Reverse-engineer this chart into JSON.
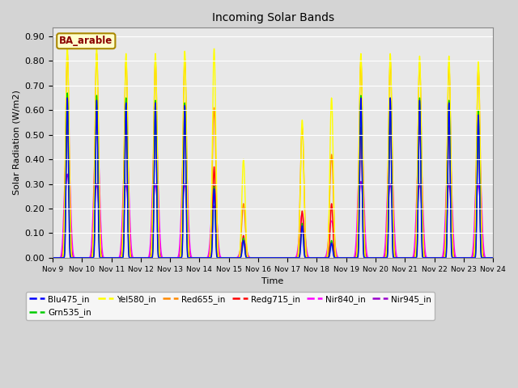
{
  "title": "Incoming Solar Bands",
  "xlabel": "Time",
  "ylabel": "Solar Radiation (W/m2)",
  "ylim": [
    0,
    0.935
  ],
  "yticks": [
    0.0,
    0.1,
    0.2,
    0.3,
    0.4,
    0.5,
    0.6,
    0.7,
    0.8,
    0.9
  ],
  "background_color": "#d4d4d4",
  "plot_bg_color": "#e8e8e8",
  "annotation_text": "BA_arable",
  "annotation_color": "#8B0000",
  "annotation_bg": "#ffffcc",
  "series_order": [
    "Nir945_in",
    "Nir840_in",
    "Redg715_in",
    "Red655_in",
    "Yel580_in",
    "Grn535_in",
    "Blu475_in"
  ],
  "series_colors": {
    "Blu475_in": "#0000ff",
    "Grn535_in": "#00cc00",
    "Yel580_in": "#ffff00",
    "Red655_in": "#ff8800",
    "Redg715_in": "#ff0000",
    "Nir840_in": "#ff00ff",
    "Nir945_in": "#9900cc"
  },
  "day_peaks": [
    {
      "day": 9,
      "Yel580_in": 0.86,
      "Red655_in": 0.83,
      "Redg715_in": 0.62,
      "Nir840_in": 0.52,
      "Nir945_in": 0.34,
      "Blu475_in": 0.65,
      "Grn535_in": 0.67
    },
    {
      "day": 10,
      "Yel580_in": 0.85,
      "Red655_in": 0.83,
      "Redg715_in": 0.62,
      "Nir840_in": 0.55,
      "Nir945_in": 0.3,
      "Blu475_in": 0.64,
      "Grn535_in": 0.66
    },
    {
      "day": 11,
      "Yel580_in": 0.83,
      "Red655_in": 0.8,
      "Redg715_in": 0.57,
      "Nir840_in": 0.52,
      "Nir945_in": 0.3,
      "Blu475_in": 0.63,
      "Grn535_in": 0.65
    },
    {
      "day": 12,
      "Yel580_in": 0.83,
      "Red655_in": 0.8,
      "Redg715_in": 0.61,
      "Nir840_in": 0.55,
      "Nir945_in": 0.3,
      "Blu475_in": 0.63,
      "Grn535_in": 0.64
    },
    {
      "day": 13,
      "Yel580_in": 0.84,
      "Red655_in": 0.81,
      "Redg715_in": 0.56,
      "Nir840_in": 0.52,
      "Nir945_in": 0.3,
      "Blu475_in": 0.62,
      "Grn535_in": 0.63
    },
    {
      "day": 14,
      "Yel580_in": 0.85,
      "Red655_in": 0.61,
      "Redg715_in": 0.37,
      "Nir840_in": 0.29,
      "Nir945_in": 0.21,
      "Blu475_in": 0.28,
      "Grn535_in": 0.29
    },
    {
      "day": 15,
      "Yel580_in": 0.4,
      "Red655_in": 0.22,
      "Redg715_in": 0.09,
      "Nir840_in": 0.07,
      "Nir945_in": 0.07,
      "Blu475_in": 0.07,
      "Grn535_in": 0.08
    },
    {
      "day": 16,
      "Yel580_in": 0.0,
      "Red655_in": 0.0,
      "Redg715_in": 0.0,
      "Nir840_in": 0.0,
      "Nir945_in": 0.0,
      "Blu475_in": 0.0,
      "Grn535_in": 0.0
    },
    {
      "day": 17,
      "Yel580_in": 0.56,
      "Red655_in": 0.53,
      "Redg715_in": 0.19,
      "Nir840_in": 0.18,
      "Nir945_in": 0.12,
      "Blu475_in": 0.13,
      "Grn535_in": 0.14
    },
    {
      "day": 18,
      "Yel580_in": 0.65,
      "Red655_in": 0.42,
      "Redg715_in": 0.22,
      "Nir840_in": 0.15,
      "Nir945_in": 0.06,
      "Blu475_in": 0.06,
      "Grn535_in": 0.07
    },
    {
      "day": 19,
      "Yel580_in": 0.83,
      "Red655_in": 0.8,
      "Redg715_in": 0.53,
      "Nir840_in": 0.52,
      "Nir945_in": 0.31,
      "Blu475_in": 0.65,
      "Grn535_in": 0.66
    },
    {
      "day": 20,
      "Yel580_in": 0.83,
      "Red655_in": 0.8,
      "Redg715_in": 0.59,
      "Nir840_in": 0.52,
      "Nir945_in": 0.3,
      "Blu475_in": 0.65,
      "Grn535_in": 0.65
    },
    {
      "day": 21,
      "Yel580_in": 0.82,
      "Red655_in": 0.79,
      "Redg715_in": 0.58,
      "Nir840_in": 0.5,
      "Nir945_in": 0.3,
      "Blu475_in": 0.64,
      "Grn535_in": 0.65
    },
    {
      "day": 22,
      "Yel580_in": 0.82,
      "Red655_in": 0.78,
      "Redg715_in": 0.53,
      "Nir840_in": 0.5,
      "Nir945_in": 0.3,
      "Blu475_in": 0.63,
      "Grn535_in": 0.64
    },
    {
      "day": 23,
      "Yel580_in": 0.8,
      "Red655_in": 0.77,
      "Redg715_in": 0.55,
      "Nir840_in": 0.5,
      "Nir945_in": 0.3,
      "Blu475_in": 0.58,
      "Grn535_in": 0.6
    }
  ],
  "peak_widths": {
    "Yel580_in": 0.18,
    "Red655_in": 0.2,
    "Redg715_in": 0.14,
    "Nir840_in": 0.28,
    "Nir945_in": 0.25,
    "Blu475_in": 0.12,
    "Grn535_in": 0.13
  }
}
